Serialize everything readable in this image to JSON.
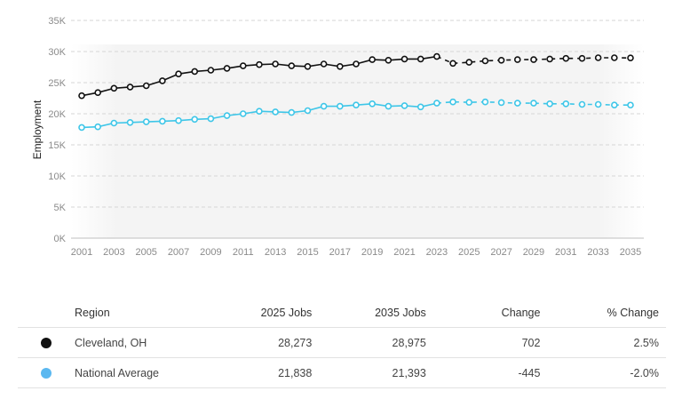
{
  "chart_data": {
    "type": "line",
    "ylabel": "Employment",
    "ylim": [
      0,
      35000
    ],
    "yticks": [
      "0K",
      "5K",
      "10K",
      "15K",
      "20K",
      "25K",
      "30K",
      "35K"
    ],
    "xticks": [
      "2001",
      "2003",
      "2005",
      "2007",
      "2009",
      "2011",
      "2013",
      "2015",
      "2017",
      "2019",
      "2021",
      "2023",
      "2025",
      "2027",
      "2029",
      "2031",
      "2033",
      "2035"
    ],
    "x": [
      2001,
      2002,
      2003,
      2004,
      2005,
      2006,
      2007,
      2008,
      2009,
      2010,
      2011,
      2012,
      2013,
      2014,
      2015,
      2016,
      2017,
      2018,
      2019,
      2020,
      2021,
      2022,
      2023,
      2024,
      2025,
      2026,
      2027,
      2028,
      2029,
      2030,
      2031,
      2032,
      2033,
      2034,
      2035
    ],
    "forecast_start": 2024,
    "grid": true,
    "series": [
      {
        "name": "Cleveland, OH",
        "color": "#111111",
        "values": [
          22900,
          23400,
          24100,
          24300,
          24500,
          25300,
          26400,
          26800,
          27000,
          27300,
          27700,
          27900,
          28000,
          27700,
          27600,
          28000,
          27600,
          28000,
          28700,
          28600,
          28800,
          28800,
          29200,
          28100,
          28273,
          28500,
          28600,
          28700,
          28700,
          28800,
          28900,
          28900,
          29000,
          29000,
          28975
        ]
      },
      {
        "name": "National Average",
        "color": "#3ec6e8",
        "values": [
          17800,
          17900,
          18500,
          18600,
          18700,
          18800,
          18900,
          19100,
          19200,
          19700,
          20000,
          20400,
          20300,
          20200,
          20500,
          21200,
          21200,
          21400,
          21600,
          21200,
          21300,
          21100,
          21700,
          21900,
          21838,
          21900,
          21800,
          21700,
          21700,
          21600,
          21600,
          21500,
          21500,
          21400,
          21393
        ]
      }
    ]
  },
  "table": {
    "headers": [
      "Region",
      "2025 Jobs",
      "2035 Jobs",
      "Change",
      "% Change"
    ],
    "rows": [
      {
        "color": "#111111",
        "region": "Cleveland, OH",
        "jobs_2025": "28,273",
        "jobs_2035": "28,975",
        "change": "702",
        "pct_change": "2.5%",
        "negative": false
      },
      {
        "color": "#5bb8f0",
        "region": "National Average",
        "jobs_2025": "21,838",
        "jobs_2035": "21,393",
        "change": "-445",
        "pct_change": "-2.0%",
        "negative": true
      }
    ]
  }
}
